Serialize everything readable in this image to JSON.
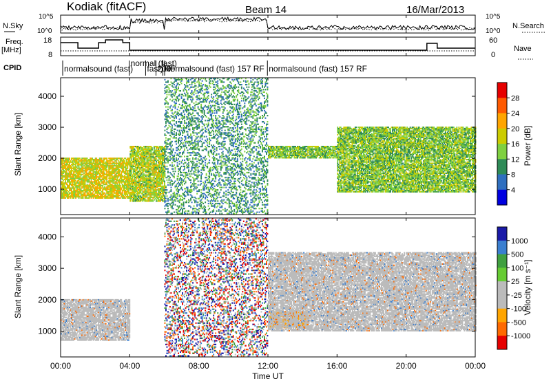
{
  "header": {
    "station": "Kodiak (fitACF)",
    "beam": "Beam 14",
    "date": "16/Mar/2013"
  },
  "noise_panel": {
    "left_label": "N.Sky",
    "left_ticks": [
      "10^5",
      "10^0"
    ],
    "right_label": "N.Search",
    "right_ticks": [
      "10^5",
      "10^0"
    ]
  },
  "freq_panel": {
    "left_label_1": "Freq.",
    "left_label_2": "[MHz]",
    "left_ticks": [
      "18",
      "8"
    ],
    "right_label": "Nave",
    "right_ticks": [
      "60",
      "0"
    ]
  },
  "cpid": {
    "label": "CPID",
    "modes": [
      {
        "text": "normalsound (fast)",
        "t": 0.2
      },
      {
        "text": "normal (fast)",
        "t": 4.05
      },
      {
        "text": "fast)",
        "t": 5.0
      },
      {
        "text": "200",
        "t": 5.6
      },
      {
        "text": "RF",
        "t": 6.0
      },
      {
        "text": "normalsound (fast) 157 RF",
        "t": 6.1
      },
      {
        "text": "normalsound (fast) 157 RF",
        "t": 12.05
      }
    ]
  },
  "power_panel": {
    "ylabel": "Slant Range [km]",
    "colorbar_label": "Power [dB]",
    "colorbar_ticks": [
      "28",
      "24",
      "20",
      "16",
      "12",
      "8",
      "4"
    ],
    "colorbar_colors": [
      "#e60000",
      "#ff5a00",
      "#ffa500",
      "#cccc00",
      "#7fd040",
      "#2e8b57",
      "#2f6fbf",
      "#0000e0"
    ]
  },
  "velocity_panel": {
    "ylabel": "Slant Range [km]",
    "colorbar_label": "Velocity [m s⁻¹]",
    "colorbar_ticks": [
      "1000",
      "500",
      "100",
      "25",
      "-25",
      "-100",
      "-500",
      "-1000"
    ],
    "colorbar_colors": [
      "#1a1aa8",
      "#3a7fd0",
      "#40a040",
      "#66cc33",
      "#bbbbbb",
      "#bbbbbb",
      "#ffa500",
      "#ff6a00",
      "#e60000"
    ]
  },
  "x_axis": {
    "label": "Time UT",
    "ticks": [
      "00:00",
      "04:00",
      "08:00",
      "12:00",
      "16:00",
      "20:00",
      "00:00"
    ]
  },
  "chart_data": {
    "type": "heatmap",
    "title": "Kodiak (fitACF)  Beam 14  16/Mar/2013",
    "xlabel": "Time UT",
    "xlim": [
      "00:00",
      "24:00"
    ],
    "panels": [
      {
        "name": "Power",
        "ylabel": "Slant Range [km]",
        "ylim": [
          180,
          4600
        ],
        "yticks": [
          1000,
          2000,
          3000,
          4000
        ],
        "colorbar": {
          "label": "Power [dB]",
          "ticks": [
            4,
            8,
            12,
            16,
            20,
            24,
            28
          ]
        },
        "echo_bands": [
          {
            "t_start": 0.0,
            "t_end": 4.0,
            "range_min": 700,
            "range_max": 2000,
            "power_db": 18
          },
          {
            "t_start": 4.0,
            "t_end": 6.0,
            "range_min": 600,
            "range_max": 2400,
            "power_db": 16
          },
          {
            "t_start": 6.0,
            "t_end": 12.0,
            "range_min": 200,
            "range_max": 4600,
            "power_db": 10
          },
          {
            "t_start": 12.0,
            "t_end": 16.0,
            "range_min": 2000,
            "range_max": 2400,
            "power_db": 14
          },
          {
            "t_start": 16.0,
            "t_end": 24.0,
            "range_min": 900,
            "range_max": 3000,
            "power_db": 14
          }
        ]
      },
      {
        "name": "Velocity",
        "ylabel": "Slant Range [km]",
        "ylim": [
          180,
          4600
        ],
        "yticks": [
          1000,
          2000,
          3000,
          4000
        ],
        "colorbar": {
          "label": "Velocity [m s⁻¹]",
          "ticks": [
            1000,
            500,
            100,
            25,
            -25,
            -100,
            -500,
            -1000
          ]
        },
        "echo_bands": [
          {
            "t_start": 0.0,
            "t_end": 4.0,
            "range_min": 700,
            "range_max": 2000,
            "velocity": 0
          },
          {
            "t_start": 6.0,
            "t_end": 12.0,
            "range_min": 200,
            "range_max": 4600,
            "velocity": 0
          },
          {
            "t_start": 12.0,
            "t_end": 14.3,
            "range_min": 1100,
            "range_max": 1600,
            "velocity": -300
          },
          {
            "t_start": 12.0,
            "t_end": 24.0,
            "range_min": 1000,
            "range_max": 3500,
            "velocity": 0
          }
        ]
      }
    ]
  }
}
